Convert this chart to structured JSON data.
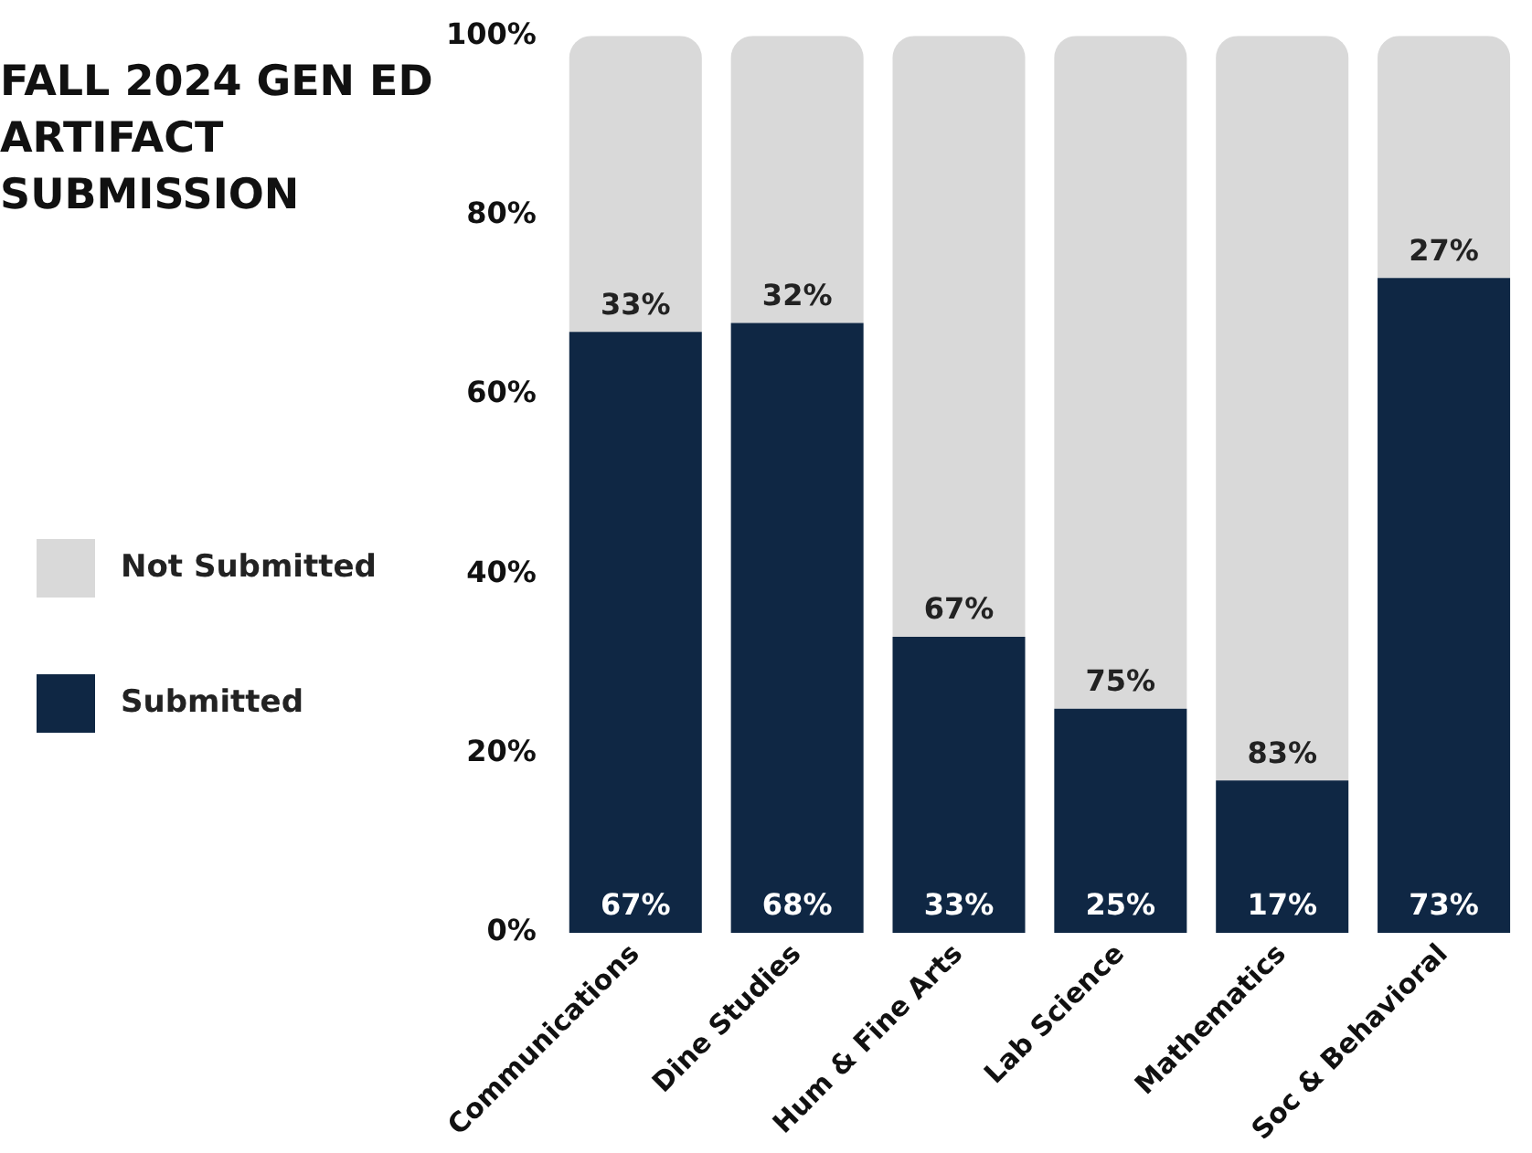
{
  "chart_data": {
    "type": "bar",
    "title": "FALL 2024 GEN ED ARTIFACT SUBMISSION",
    "stacked": true,
    "categories": [
      "Communications",
      "Dine Studies",
      "Hum & Fine Arts",
      "Lab Science",
      "Mathematics",
      "Soc & Behavioral"
    ],
    "series": [
      {
        "name": "Submitted",
        "color": "#0f2744",
        "values": [
          67,
          68,
          33,
          25,
          17,
          73
        ],
        "value_labels": [
          "67%",
          "68%",
          "33%",
          "25%",
          "17%",
          "73%"
        ]
      },
      {
        "name": "Not Submitted",
        "color": "#d9d9d9",
        "values": [
          33,
          32,
          67,
          75,
          83,
          27
        ],
        "value_labels": [
          "33%",
          "32%",
          "67%",
          "75%",
          "83%",
          "27%"
        ]
      }
    ],
    "ylim": [
      0,
      100
    ],
    "yticks": [
      {
        "value": 0,
        "label": "0%"
      },
      {
        "value": 20,
        "label": "20%"
      },
      {
        "value": 40,
        "label": "40%"
      },
      {
        "value": 60,
        "label": "60%"
      },
      {
        "value": 80,
        "label": "80%"
      },
      {
        "value": 100,
        "label": "100%"
      }
    ],
    "grid": false,
    "legend": "left"
  }
}
